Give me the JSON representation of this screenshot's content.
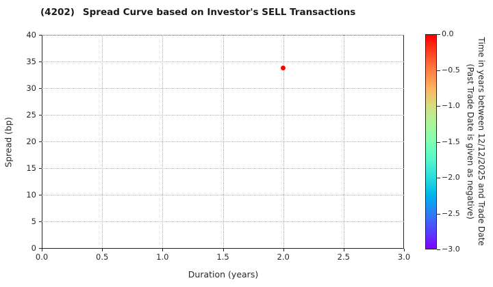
{
  "header": {
    "ticker": "(4202)",
    "title": "Spread Curve based on Investor's SELL Transactions"
  },
  "chart_data": {
    "type": "scatter",
    "title": "(4202)  Spread Curve based on Investor's SELL Transactions",
    "xlabel": "Duration (years)",
    "ylabel": "Spread (bp)",
    "xlim": [
      0.0,
      3.0
    ],
    "ylim": [
      0,
      40
    ],
    "x_ticks": [
      0.0,
      0.5,
      1.0,
      1.5,
      2.0,
      2.5,
      3.0
    ],
    "x_tick_labels": [
      "0.0",
      "0.5",
      "1.0",
      "1.5",
      "2.0",
      "2.5",
      "3.0"
    ],
    "y_ticks": [
      0,
      5,
      10,
      15,
      20,
      25,
      30,
      35,
      40
    ],
    "y_tick_labels": [
      "0",
      "5",
      "10",
      "15",
      "20",
      "25",
      "30",
      "35",
      "40"
    ],
    "grid": "dotted",
    "legend_position": "colorbar-right",
    "points": [
      {
        "x": 2.0,
        "y": 33.8,
        "time_value": 0.0,
        "color": "#ff0000"
      }
    ],
    "colorbar": {
      "label_line1": "Time in years between 12/12/2025 and Trade Date",
      "label_line2": "(Past Trade Date is given as negative)",
      "vmax": 0.0,
      "vmin": -3.0,
      "ticks": [
        0.0,
        -0.5,
        -1.0,
        -1.5,
        -2.0,
        -2.5,
        -3.0
      ],
      "tick_labels": [
        "0.0",
        "−0.5",
        "−1.0",
        "−1.5",
        "−2.0",
        "−2.5",
        "−3.0"
      ],
      "colormap": "rainbow",
      "gradient_stops": [
        {
          "pos": 0.0,
          "color": "#ff0000"
        },
        {
          "pos": 8.3,
          "color": "#ff4221"
        },
        {
          "pos": 16.7,
          "color": "#ff8042"
        },
        {
          "pos": 25.0,
          "color": "#ffb462"
        },
        {
          "pos": 33.3,
          "color": "#d5dd80"
        },
        {
          "pos": 41.7,
          "color": "#aaf69b"
        },
        {
          "pos": 50.0,
          "color": "#80ffb5"
        },
        {
          "pos": 58.3,
          "color": "#55f6ca"
        },
        {
          "pos": 66.7,
          "color": "#2bdddd"
        },
        {
          "pos": 75.0,
          "color": "#00b4ec"
        },
        {
          "pos": 83.3,
          "color": "#2b80f6"
        },
        {
          "pos": 91.7,
          "color": "#5542fd"
        },
        {
          "pos": 100.0,
          "color": "#8000ff"
        }
      ]
    }
  }
}
